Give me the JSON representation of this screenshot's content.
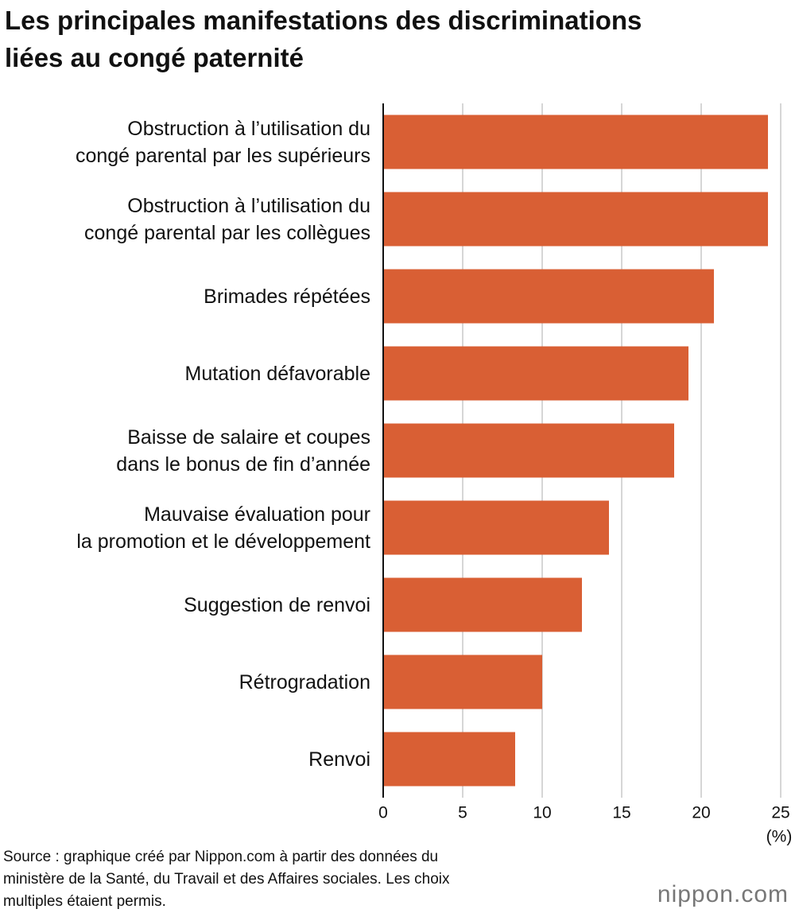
{
  "chart_data": {
    "type": "hbar",
    "title": "Les principales manifestations des discriminations\nliées au congé paternité",
    "categories": [
      "Obstruction à l’utilisation du\ncongé parental par les supérieurs",
      "Obstruction à l’utilisation du\ncongé parental par les collègues",
      "Brimades répétées",
      "Mutation défavorable",
      "Baisse de salaire et coupes\ndans le bonus de fin d’année",
      "Mauvaise évaluation pour\nla promotion et le développement",
      "Suggestion de renvoi",
      "Rétrogradation",
      "Renvoi"
    ],
    "values": [
      24.2,
      24.2,
      20.8,
      19.2,
      18.3,
      14.2,
      12.5,
      10.0,
      8.3
    ],
    "color": "#d95f34",
    "xlim": [
      0,
      25
    ],
    "xticks": [
      0,
      5,
      10,
      15,
      20,
      25
    ],
    "grid": true,
    "xlabel": "(%)",
    "source": "Source : graphique créé par Nippon.com à partir des données du\nministère de la Santé, du Travail et des Affaires sociales. Les choix\nmultiples étaient permis.",
    "logo": "nippon.com"
  }
}
